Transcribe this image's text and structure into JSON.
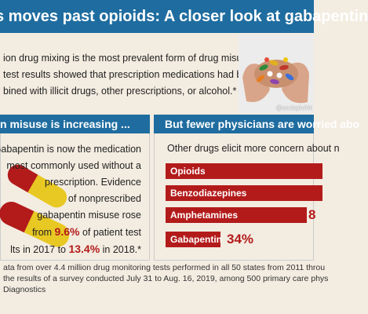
{
  "header": {
    "title": "s moves past opioids: A closer look at gabapentin"
  },
  "intro": {
    "lines": [
      "ion drug mixing is the most prevalent form of drug misuse.",
      "test results showed that prescription medications had been",
      "bined with illicit drugs, other prescriptions, or alcohol.*"
    ],
    "photo_credit": "@sodapix/thi"
  },
  "left_section": {
    "title": "n misuse is increasing ...",
    "lines": [
      "Gabapentin is now the medication",
      "most commonly used without a",
      "prescription. Evidence",
      "of nonprescribed",
      "gabapentin misuse rose"
    ],
    "line6_pre": "from ",
    "value_2017": "9.6%",
    "line6_post": " of patient test",
    "line7_pre": "lts in 2017 to ",
    "value_2018": "13.4%",
    "line7_post": " in 2018.*"
  },
  "right_section": {
    "title": "But fewer physicians are worried abo",
    "subtitle": "Other drugs elicit more concern about n",
    "bars": [
      {
        "label": "Opioids",
        "value_text": ""
      },
      {
        "label": "Benzodiazepines",
        "value_text": ""
      },
      {
        "label": "Amphetamines",
        "value_text": "8"
      },
      {
        "label": "Gabapentin",
        "value_text": "34%"
      }
    ]
  },
  "footer": {
    "lines": [
      "ata from over 4.4 million drug monitoring tests performed in all 50 states from 2011 throu",
      "the results of a survey conducted July 31 to Aug. 16, 2019, among 500 primary care phys",
      "Diagnostics"
    ]
  },
  "colors": {
    "header_blue": "#1f6da0",
    "accent_red": "#b31b1b",
    "background": "#f3ece1"
  }
}
